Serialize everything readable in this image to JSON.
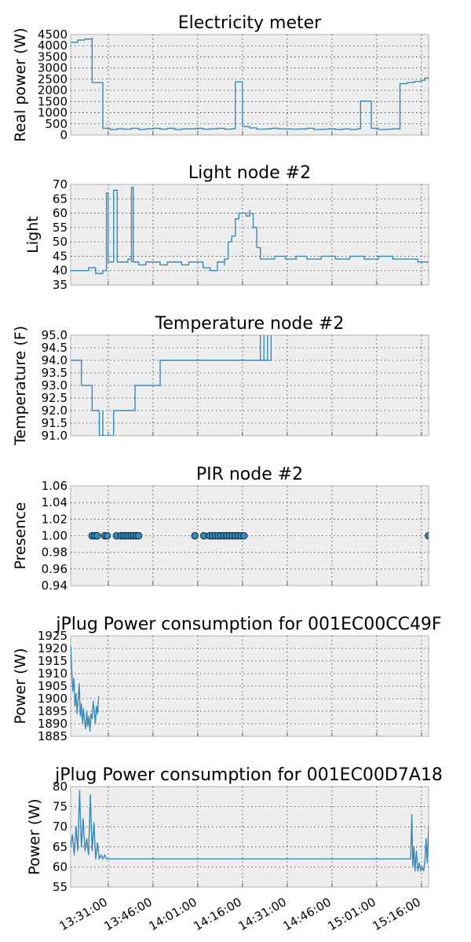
{
  "chart_data": [
    {
      "type": "line",
      "title": "Electricity meter",
      "ylabel": "Real power (W)",
      "ylim": [
        0,
        4500
      ],
      "yticks": [
        "0",
        "500",
        "1000",
        "1500",
        "2000",
        "2500",
        "3000",
        "3500",
        "4000",
        "4500"
      ],
      "step": true,
      "series": [
        {
          "values": [
            [
              0,
              4150
            ],
            [
              2,
              4250
            ],
            [
              4,
              4300
            ],
            [
              6,
              4350
            ],
            [
              6,
              2350
            ],
            [
              9,
              2350
            ],
            [
              9,
              300
            ],
            [
              11,
              250
            ],
            [
              13,
              280
            ],
            [
              15,
              260
            ],
            [
              17,
              300
            ],
            [
              19,
              250
            ],
            [
              21,
              280
            ],
            [
              23,
              300
            ],
            [
              25,
              260
            ],
            [
              27,
              300
            ],
            [
              29,
              250
            ],
            [
              31,
              270
            ],
            [
              33,
              280
            ],
            [
              35,
              300
            ],
            [
              37,
              260
            ],
            [
              39,
              280
            ],
            [
              41,
              300
            ],
            [
              43,
              260
            ],
            [
              45,
              280
            ],
            [
              46,
              300
            ],
            [
              46,
              2380
            ],
            [
              48,
              2380
            ],
            [
              48,
              380
            ],
            [
              50,
              320
            ],
            [
              52,
              260
            ],
            [
              54,
              270
            ],
            [
              56,
              300
            ],
            [
              58,
              280
            ],
            [
              60,
              270
            ],
            [
              62,
              260
            ],
            [
              64,
              270
            ],
            [
              66,
              300
            ],
            [
              68,
              250
            ],
            [
              70,
              260
            ],
            [
              72,
              280
            ],
            [
              74,
              250
            ],
            [
              76,
              270
            ],
            [
              78,
              250
            ],
            [
              80,
              280
            ],
            [
              81,
              280
            ],
            [
              81,
              1520
            ],
            [
              84,
              1450
            ],
            [
              84,
              300
            ],
            [
              86,
              250
            ],
            [
              88,
              260
            ],
            [
              90,
              280
            ],
            [
              92,
              260
            ],
            [
              92,
              2300
            ],
            [
              94,
              2350
            ],
            [
              96,
              2400
            ],
            [
              98,
              2450
            ],
            [
              99,
              2550
            ],
            [
              100,
              2500
            ]
          ]
        }
      ]
    },
    {
      "type": "line",
      "title": "Light node #2",
      "ylabel": "Light",
      "ylim": [
        35,
        70
      ],
      "yticks": [
        "35",
        "40",
        "45",
        "50",
        "55",
        "60",
        "65",
        "70"
      ],
      "step": true,
      "series": [
        {
          "values": [
            [
              0,
              40
            ],
            [
              3,
              40
            ],
            [
              5,
              41
            ],
            [
              7,
              39
            ],
            [
              9,
              40
            ],
            [
              10,
              40
            ],
            [
              10,
              43
            ],
            [
              10,
              67
            ],
            [
              10.5,
              43
            ],
            [
              12,
              43
            ],
            [
              12,
              68
            ],
            [
              13,
              66
            ],
            [
              13,
              43
            ],
            [
              14,
              43
            ],
            [
              16,
              44
            ],
            [
              17,
              43
            ],
            [
              17,
              69
            ],
            [
              17.5,
              43
            ],
            [
              19,
              42
            ],
            [
              21,
              43
            ],
            [
              23,
              43
            ],
            [
              25,
              42
            ],
            [
              27,
              43
            ],
            [
              29,
              43
            ],
            [
              31,
              42
            ],
            [
              33,
              43
            ],
            [
              35,
              43
            ],
            [
              37,
              41
            ],
            [
              39,
              40
            ],
            [
              41,
              43
            ],
            [
              42,
              43
            ],
            [
              43,
              42
            ],
            [
              43,
              44
            ],
            [
              44,
              50
            ],
            [
              45,
              52
            ],
            [
              46,
              58
            ],
            [
              47,
              60
            ],
            [
              48,
              60
            ],
            [
              49,
              59
            ],
            [
              50,
              61
            ],
            [
              50,
              60
            ],
            [
              51,
              55
            ],
            [
              52,
              48
            ],
            [
              53,
              44
            ],
            [
              55,
              44
            ],
            [
              57,
              45
            ],
            [
              60,
              44
            ],
            [
              63,
              45
            ],
            [
              66,
              44
            ],
            [
              70,
              45
            ],
            [
              74,
              44
            ],
            [
              78,
              45
            ],
            [
              82,
              44
            ],
            [
              86,
              45
            ],
            [
              90,
              44
            ],
            [
              94,
              44
            ],
            [
              97,
              43
            ],
            [
              100,
              43
            ]
          ]
        }
      ]
    },
    {
      "type": "line",
      "title": "Temperature node #2",
      "ylabel": "Temperature (F)",
      "ylim": [
        91,
        95
      ],
      "yticks": [
        "91.0",
        "91.5",
        "92.0",
        "92.5",
        "93.0",
        "93.5",
        "94.0",
        "94.5",
        "95.0"
      ],
      "step": true,
      "series": [
        {
          "values": [
            [
              0,
              94
            ],
            [
              3,
              94
            ],
            [
              3,
              93
            ],
            [
              6,
              93
            ],
            [
              6,
              92
            ],
            [
              8,
              92
            ],
            [
              8,
              91
            ],
            [
              9,
              91
            ],
            [
              9,
              92
            ],
            [
              9,
              91
            ],
            [
              12,
              91
            ],
            [
              12,
              92
            ],
            [
              18,
              92
            ],
            [
              18,
              93
            ],
            [
              25,
              93
            ],
            [
              25,
              94
            ],
            [
              40,
              94
            ],
            [
              40,
              94
            ],
            [
              53,
              94
            ],
            [
              53,
              95
            ],
            [
              53,
              94
            ],
            [
              54,
              95
            ],
            [
              54,
              94
            ],
            [
              55,
              95
            ],
            [
              55,
              94
            ],
            [
              56,
              94
            ],
            [
              56,
              95
            ],
            [
              56,
              94
            ]
          ]
        }
      ]
    },
    {
      "type": "scatter",
      "title": "PIR node #2",
      "ylabel": "Presence",
      "ylim": [
        0.94,
        1.06
      ],
      "yticks": [
        "0.94",
        "0.96",
        "0.98",
        "1.00",
        "1.02",
        "1.04",
        "1.06"
      ],
      "series": [
        {
          "values": [
            [
              6,
              1
            ],
            [
              6.7,
              1
            ],
            [
              7.4,
              1
            ],
            [
              9.5,
              1
            ],
            [
              10.2,
              1
            ],
            [
              12.8,
              1
            ],
            [
              14.1,
              1
            ],
            [
              14.8,
              1
            ],
            [
              15.5,
              1
            ],
            [
              16.2,
              1
            ],
            [
              16.9,
              1
            ],
            [
              17.6,
              1
            ],
            [
              18.3,
              1
            ],
            [
              19,
              1
            ],
            [
              34.7,
              1
            ],
            [
              37.2,
              1
            ],
            [
              38.8,
              1
            ],
            [
              39.6,
              1
            ],
            [
              40.4,
              1
            ],
            [
              41.2,
              1
            ],
            [
              42,
              1
            ],
            [
              42.8,
              1
            ],
            [
              43.6,
              1
            ],
            [
              44.4,
              1
            ],
            [
              45.2,
              1
            ],
            [
              46,
              1
            ],
            [
              46.8,
              1
            ],
            [
              47.6,
              1
            ],
            [
              48.4,
              1
            ],
            [
              100,
              1
            ]
          ]
        }
      ]
    },
    {
      "type": "line",
      "title": "jPlug Power consumption for 001EC00CC49F",
      "ylabel": "Power (W)",
      "ylim": [
        1885,
        1925
      ],
      "yticks": [
        "1885",
        "1890",
        "1895",
        "1900",
        "1905",
        "1910",
        "1915",
        "1920",
        "1925"
      ],
      "series": [
        {
          "values": [
            [
              0,
              1921
            ],
            [
              0.3,
              1912
            ],
            [
              0.6,
              1903
            ],
            [
              0.9,
              1908
            ],
            [
              1.2,
              1897
            ],
            [
              1.5,
              1902
            ],
            [
              1.8,
              1894
            ],
            [
              2.1,
              1900
            ],
            [
              2.4,
              1906
            ],
            [
              2.7,
              1893
            ],
            [
              3,
              1898
            ],
            [
              3.3,
              1890
            ],
            [
              3.6,
              1896
            ],
            [
              3.9,
              1891
            ],
            [
              4.2,
              1888
            ],
            [
              4.5,
              1895
            ],
            [
              4.8,
              1889
            ],
            [
              5.1,
              1893
            ],
            [
              5.4,
              1887
            ],
            [
              5.7,
              1894
            ],
            [
              6,
              1892
            ],
            [
              6.3,
              1899
            ],
            [
              6.6,
              1895
            ],
            [
              6.9,
              1890
            ],
            [
              7.2,
              1897
            ],
            [
              7.5,
              1894
            ],
            [
              7.8,
              1901
            ]
          ]
        }
      ]
    },
    {
      "type": "line",
      "title": "jPlug Power consumption for 001EC00D7A18",
      "ylabel": "Power (W)",
      "ylim": [
        55,
        80
      ],
      "yticks": [
        "55",
        "60",
        "65",
        "70",
        "75",
        "80"
      ],
      "series": [
        {
          "values": [
            [
              0,
              65
            ],
            [
              0.5,
              68
            ],
            [
              1,
              63
            ],
            [
              1.5,
              70
            ],
            [
              2,
              64
            ],
            [
              2.5,
              79
            ],
            [
              3,
              65
            ],
            [
              3.5,
              72
            ],
            [
              4,
              64
            ],
            [
              4.5,
              67
            ],
            [
              5,
              63
            ],
            [
              5.5,
              78
            ],
            [
              6,
              64
            ],
            [
              6.5,
              71
            ],
            [
              7,
              62
            ],
            [
              7.5,
              66
            ],
            [
              8,
              62
            ],
            [
              8.5,
              63
            ],
            [
              9,
              62
            ],
            [
              9.5,
              63
            ],
            [
              10,
              62
            ],
            [
              10.5,
              62
            ],
            [
              60,
              62
            ],
            [
              95,
              62
            ],
            [
              95.3,
              73
            ],
            [
              95.6,
              60
            ],
            [
              95.9,
              65
            ],
            [
              96.2,
              59
            ],
            [
              96.6,
              64
            ],
            [
              97,
              59
            ],
            [
              97.4,
              61
            ],
            [
              97.8,
              59
            ],
            [
              98.2,
              60
            ],
            [
              98.6,
              59
            ],
            [
              99,
              62
            ],
            [
              99.3,
              67
            ],
            [
              99.6,
              61
            ],
            [
              100,
              70
            ]
          ]
        }
      ]
    }
  ],
  "xticks": [
    "13:31:00",
    "13:46:00",
    "14:01:00",
    "14:16:00",
    "14:31:00",
    "14:46:00",
    "15:01:00",
    "15:16:00"
  ]
}
